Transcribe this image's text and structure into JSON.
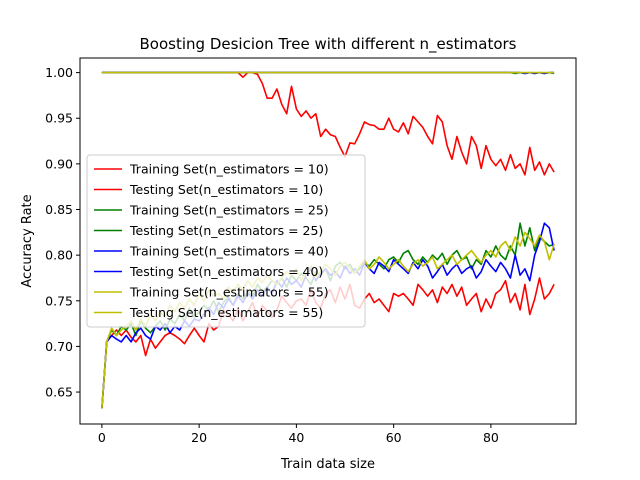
{
  "chart_data": {
    "type": "line",
    "title": "Boosting Desicion Tree with different n_estimators",
    "xlabel": "Train data size",
    "ylabel": "Accuracy Rate",
    "xlim": [
      -4.5,
      97.5
    ],
    "ylim": [
      0.615,
      1.016
    ],
    "xticks": [
      0,
      20,
      40,
      60,
      80
    ],
    "yticks": [
      0.65,
      0.7,
      0.75,
      0.8,
      0.85,
      0.9,
      0.95,
      1.0
    ],
    "xtick_labels": [
      "0",
      "20",
      "40",
      "60",
      "80"
    ],
    "ytick_labels": [
      "0.65",
      "0.70",
      "0.75",
      "0.80",
      "0.85",
      "0.90",
      "0.95",
      "1.00"
    ],
    "grid": false,
    "legend_position": "center-left",
    "series": [
      {
        "name": "Training Set(n_estimators = 10)",
        "color": "#ff0000",
        "x": [
          0,
          10,
          20,
          25,
          28,
          29,
          30,
          31,
          32,
          33,
          34,
          35,
          36,
          37,
          38,
          39,
          40,
          41,
          42,
          43,
          44,
          45,
          46,
          47,
          48,
          49,
          50,
          51,
          52,
          53,
          54,
          55,
          56,
          57,
          58,
          59,
          60,
          61,
          62,
          63,
          64,
          65,
          66,
          67,
          68,
          69,
          70,
          71,
          72,
          73,
          74,
          75,
          76,
          77,
          78,
          79,
          80,
          81,
          82,
          83,
          84,
          85,
          86,
          87,
          88,
          89,
          90,
          91,
          92,
          93
        ],
        "values": [
          1.0,
          1.0,
          1.0,
          1.0,
          1.0,
          0.995,
          1.0,
          1.0,
          0.998,
          0.988,
          0.972,
          0.972,
          0.982,
          0.965,
          0.955,
          0.985,
          0.96,
          0.952,
          0.958,
          0.95,
          0.955,
          0.93,
          0.938,
          0.932,
          0.93,
          0.918,
          0.908,
          0.923,
          0.922,
          0.933,
          0.946,
          0.943,
          0.942,
          0.938,
          0.938,
          0.95,
          0.938,
          0.935,
          0.945,
          0.933,
          0.952,
          0.946,
          0.94,
          0.93,
          0.922,
          0.953,
          0.946,
          0.92,
          0.905,
          0.93,
          0.913,
          0.9,
          0.93,
          0.92,
          0.895,
          0.92,
          0.905,
          0.898,
          0.905,
          0.893,
          0.91,
          0.895,
          0.9,
          0.888,
          0.918,
          0.893,
          0.902,
          0.888,
          0.9,
          0.891
        ]
      },
      {
        "name": "Testing Set(n_estimators = 10)",
        "color": "#ff0000",
        "x": [
          0,
          1,
          2,
          3,
          4,
          5,
          6,
          7,
          8,
          9,
          10,
          11,
          12,
          13,
          14,
          15,
          16,
          17,
          18,
          19,
          20,
          21,
          22,
          23,
          24,
          25,
          26,
          27,
          28,
          29,
          30,
          31,
          32,
          33,
          34,
          35,
          36,
          37,
          38,
          39,
          40,
          41,
          42,
          43,
          44,
          45,
          46,
          47,
          48,
          49,
          50,
          51,
          52,
          53,
          54,
          55,
          56,
          57,
          58,
          59,
          60,
          61,
          62,
          63,
          64,
          65,
          66,
          67,
          68,
          69,
          70,
          71,
          72,
          73,
          74,
          75,
          76,
          77,
          78,
          79,
          80,
          81,
          82,
          83,
          84,
          85,
          86,
          87,
          88,
          89,
          90,
          91,
          92,
          93
        ],
        "values": [
          0.632,
          0.705,
          0.712,
          0.718,
          0.712,
          0.718,
          0.71,
          0.705,
          0.712,
          0.69,
          0.708,
          0.698,
          0.705,
          0.712,
          0.715,
          0.712,
          0.708,
          0.703,
          0.712,
          0.72,
          0.712,
          0.705,
          0.725,
          0.718,
          0.722,
          0.74,
          0.735,
          0.728,
          0.742,
          0.728,
          0.738,
          0.748,
          0.732,
          0.745,
          0.738,
          0.732,
          0.74,
          0.755,
          0.748,
          0.742,
          0.75,
          0.752,
          0.745,
          0.762,
          0.748,
          0.742,
          0.758,
          0.762,
          0.748,
          0.765,
          0.752,
          0.768,
          0.745,
          0.742,
          0.752,
          0.758,
          0.748,
          0.752,
          0.745,
          0.738,
          0.758,
          0.755,
          0.758,
          0.752,
          0.745,
          0.768,
          0.762,
          0.755,
          0.762,
          0.748,
          0.765,
          0.758,
          0.768,
          0.755,
          0.765,
          0.745,
          0.752,
          0.758,
          0.738,
          0.752,
          0.742,
          0.758,
          0.762,
          0.772,
          0.748,
          0.758,
          0.74,
          0.768,
          0.735,
          0.752,
          0.775,
          0.752,
          0.758,
          0.768
        ]
      },
      {
        "name": "Training Set(n_estimators = 25)",
        "color": "#008000",
        "x": [
          0,
          10,
          20,
          30,
          40,
          50,
          60,
          70,
          80,
          84,
          85,
          86,
          87,
          88,
          89,
          90,
          91,
          92,
          93
        ],
        "values": [
          1.0,
          1.0,
          1.0,
          1.0,
          1.0,
          1.0,
          1.0,
          1.0,
          1.0,
          1.0,
          0.999,
          1.0,
          0.999,
          1.0,
          0.999,
          1.0,
          0.999,
          1.0,
          0.999
        ]
      },
      {
        "name": "Testing Set(n_estimators = 25)",
        "color": "#008000",
        "x": [
          0,
          1,
          2,
          3,
          4,
          5,
          6,
          7,
          8,
          9,
          10,
          11,
          12,
          13,
          14,
          15,
          16,
          17,
          18,
          19,
          20,
          21,
          22,
          23,
          24,
          25,
          26,
          27,
          28,
          29,
          30,
          31,
          32,
          33,
          34,
          35,
          36,
          37,
          38,
          39,
          40,
          41,
          42,
          43,
          44,
          45,
          46,
          47,
          48,
          49,
          50,
          51,
          52,
          53,
          54,
          55,
          56,
          57,
          58,
          59,
          60,
          61,
          62,
          63,
          64,
          65,
          66,
          67,
          68,
          69,
          70,
          71,
          72,
          73,
          74,
          75,
          76,
          77,
          78,
          79,
          80,
          81,
          82,
          83,
          84,
          85,
          86,
          87,
          88,
          89,
          90,
          91,
          92,
          93
        ],
        "values": [
          0.632,
          0.705,
          0.718,
          0.712,
          0.722,
          0.718,
          0.725,
          0.712,
          0.728,
          0.72,
          0.715,
          0.722,
          0.728,
          0.718,
          0.73,
          0.725,
          0.735,
          0.728,
          0.742,
          0.732,
          0.738,
          0.745,
          0.74,
          0.75,
          0.738,
          0.748,
          0.755,
          0.745,
          0.758,
          0.752,
          0.76,
          0.755,
          0.768,
          0.76,
          0.765,
          0.772,
          0.768,
          0.775,
          0.765,
          0.778,
          0.772,
          0.78,
          0.775,
          0.768,
          0.782,
          0.778,
          0.785,
          0.772,
          0.788,
          0.792,
          0.785,
          0.79,
          0.78,
          0.785,
          0.792,
          0.788,
          0.795,
          0.79,
          0.785,
          0.795,
          0.798,
          0.792,
          0.802,
          0.805,
          0.795,
          0.79,
          0.798,
          0.792,
          0.8,
          0.795,
          0.802,
          0.79,
          0.8,
          0.805,
          0.795,
          0.798,
          0.785,
          0.795,
          0.79,
          0.805,
          0.798,
          0.81,
          0.8,
          0.795,
          0.81,
          0.8,
          0.835,
          0.81,
          0.83,
          0.805,
          0.82,
          0.815,
          0.81,
          0.812
        ]
      },
      {
        "name": "Training Set(n_estimators = 40)",
        "color": "#0000ff",
        "x": [
          0,
          10,
          20,
          30,
          40,
          50,
          60,
          70,
          80,
          86,
          87,
          88,
          89,
          90,
          91,
          92,
          93
        ],
        "values": [
          1.0,
          1.0,
          1.0,
          1.0,
          1.0,
          1.0,
          1.0,
          1.0,
          1.0,
          1.0,
          0.999,
          1.0,
          0.999,
          1.0,
          0.999,
          1.0,
          1.0
        ]
      },
      {
        "name": "Testing Set(n_estimators = 40)",
        "color": "#0000ff",
        "x": [
          0,
          1,
          2,
          3,
          4,
          5,
          6,
          7,
          8,
          9,
          10,
          11,
          12,
          13,
          14,
          15,
          16,
          17,
          18,
          19,
          20,
          21,
          22,
          23,
          24,
          25,
          26,
          27,
          28,
          29,
          30,
          31,
          32,
          33,
          34,
          35,
          36,
          37,
          38,
          39,
          40,
          41,
          42,
          43,
          44,
          45,
          46,
          47,
          48,
          49,
          50,
          51,
          52,
          53,
          54,
          55,
          56,
          57,
          58,
          59,
          60,
          61,
          62,
          63,
          64,
          65,
          66,
          67,
          68,
          69,
          70,
          71,
          72,
          73,
          74,
          75,
          76,
          77,
          78,
          79,
          80,
          81,
          82,
          83,
          84,
          85,
          86,
          87,
          88,
          89,
          90,
          91,
          92,
          93
        ],
        "values": [
          0.632,
          0.705,
          0.712,
          0.708,
          0.705,
          0.712,
          0.705,
          0.715,
          0.72,
          0.712,
          0.708,
          0.722,
          0.718,
          0.725,
          0.715,
          0.722,
          0.718,
          0.728,
          0.722,
          0.73,
          0.728,
          0.735,
          0.742,
          0.735,
          0.748,
          0.742,
          0.752,
          0.745,
          0.755,
          0.748,
          0.758,
          0.752,
          0.762,
          0.755,
          0.765,
          0.758,
          0.772,
          0.765,
          0.775,
          0.768,
          0.772,
          0.765,
          0.778,
          0.785,
          0.772,
          0.78,
          0.785,
          0.778,
          0.782,
          0.775,
          0.788,
          0.78,
          0.785,
          0.778,
          0.792,
          0.785,
          0.78,
          0.792,
          0.788,
          0.782,
          0.795,
          0.79,
          0.785,
          0.78,
          0.792,
          0.785,
          0.795,
          0.788,
          0.775,
          0.782,
          0.79,
          0.778,
          0.785,
          0.79,
          0.78,
          0.785,
          0.788,
          0.775,
          0.782,
          0.795,
          0.788,
          0.782,
          0.792,
          0.785,
          0.775,
          0.8,
          0.778,
          0.785,
          0.772,
          0.8,
          0.815,
          0.835,
          0.83,
          0.805
        ]
      },
      {
        "name": "Training Set(n_estimators = 55)",
        "color": "#bfbf00",
        "x": [
          0,
          10,
          20,
          30,
          40,
          50,
          60,
          70,
          80,
          90,
          93
        ],
        "values": [
          1.0,
          1.0,
          1.0,
          1.0,
          1.0,
          1.0,
          1.0,
          1.0,
          1.0,
          1.0,
          1.0
        ]
      },
      {
        "name": "Testing Set(n_estimators = 55)",
        "color": "#bfbf00",
        "x": [
          0,
          1,
          2,
          3,
          4,
          5,
          6,
          7,
          8,
          9,
          10,
          11,
          12,
          13,
          14,
          15,
          16,
          17,
          18,
          19,
          20,
          21,
          22,
          23,
          24,
          25,
          26,
          27,
          28,
          29,
          30,
          31,
          32,
          33,
          34,
          35,
          36,
          37,
          38,
          39,
          40,
          41,
          42,
          43,
          44,
          45,
          46,
          47,
          48,
          49,
          50,
          51,
          52,
          53,
          54,
          55,
          56,
          57,
          58,
          59,
          60,
          61,
          62,
          63,
          64,
          65,
          66,
          67,
          68,
          69,
          70,
          71,
          72,
          73,
          74,
          75,
          76,
          77,
          78,
          79,
          80,
          81,
          82,
          83,
          84,
          85,
          86,
          87,
          88,
          89,
          90,
          91,
          92,
          93
        ],
        "values": [
          0.632,
          0.705,
          0.72,
          0.712,
          0.718,
          0.722,
          0.728,
          0.718,
          0.73,
          0.722,
          0.735,
          0.728,
          0.738,
          0.732,
          0.745,
          0.738,
          0.748,
          0.742,
          0.752,
          0.745,
          0.758,
          0.75,
          0.762,
          0.755,
          0.758,
          0.752,
          0.765,
          0.76,
          0.768,
          0.762,
          0.772,
          0.765,
          0.775,
          0.77,
          0.778,
          0.772,
          0.768,
          0.775,
          0.782,
          0.778,
          0.785,
          0.772,
          0.78,
          0.788,
          0.775,
          0.782,
          0.79,
          0.785,
          0.778,
          0.788,
          0.792,
          0.785,
          0.78,
          0.788,
          0.795,
          0.785,
          0.79,
          0.798,
          0.792,
          0.785,
          0.79,
          0.795,
          0.788,
          0.782,
          0.79,
          0.795,
          0.788,
          0.792,
          0.798,
          0.785,
          0.79,
          0.795,
          0.8,
          0.79,
          0.795,
          0.8,
          0.805,
          0.798,
          0.792,
          0.8,
          0.805,
          0.798,
          0.81,
          0.815,
          0.805,
          0.82,
          0.81,
          0.825,
          0.818,
          0.81,
          0.822,
          0.815,
          0.795,
          0.812
        ]
      }
    ]
  }
}
